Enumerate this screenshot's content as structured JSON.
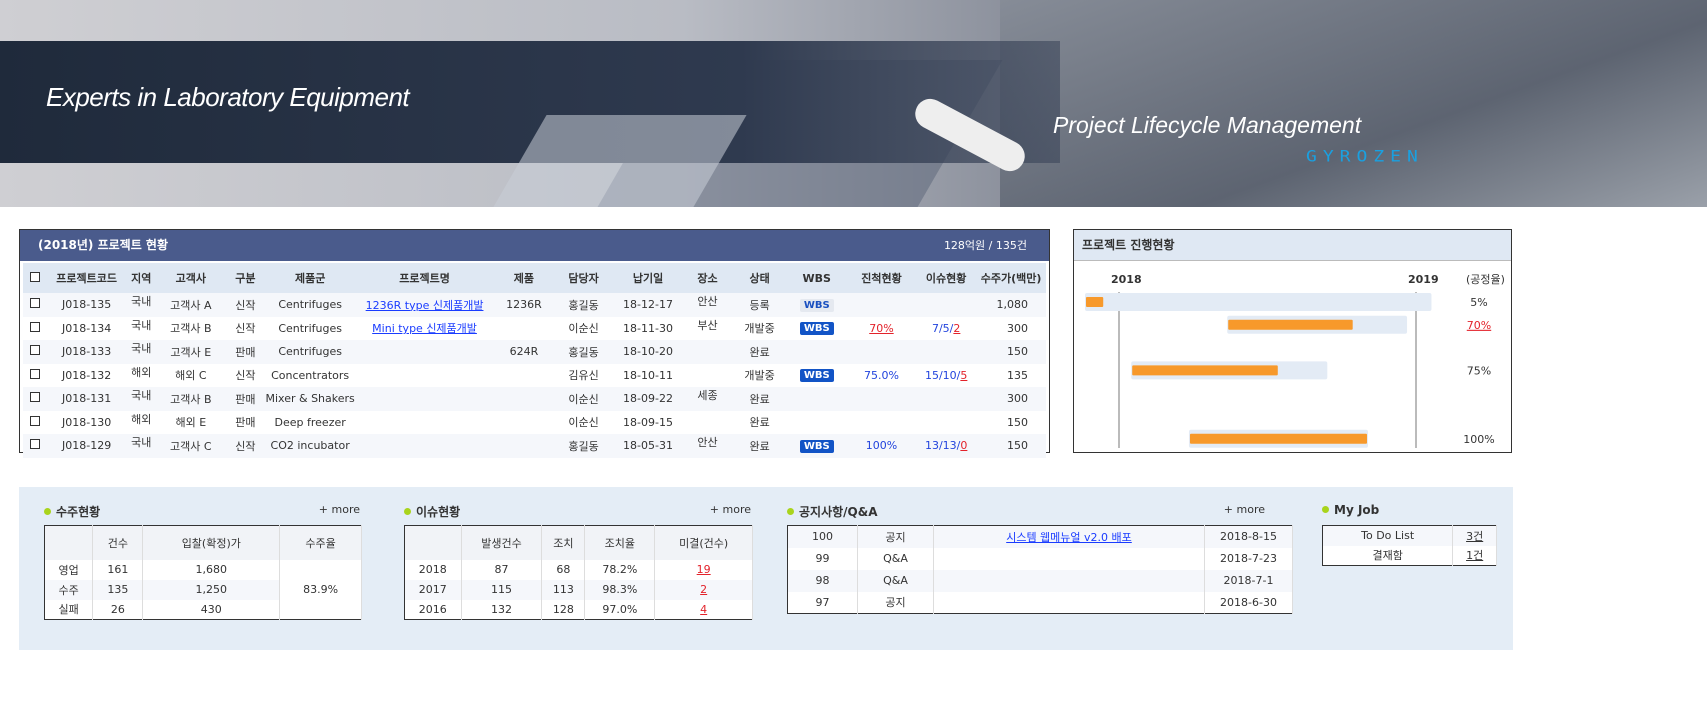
{
  "banner": {
    "tagline": "Experts in Laboratory Equipment",
    "product": "Project Lifecycle Management",
    "logo": "GYROZEN"
  },
  "projects": {
    "title": "(2018년) 프로젝트 현황",
    "summary": "128억원 / 135건",
    "headers": [
      "프로젝트코드",
      "지역",
      "고객사",
      "구분",
      "제품군",
      "프로젝트명",
      "제품",
      "담당자",
      "납기일",
      "장소",
      "상태",
      "WBS",
      "진척현황",
      "이슈현황",
      "수주가(백만)"
    ],
    "rows": [
      {
        "code": "J018-135",
        "region": "국내",
        "client": "고객사 A",
        "type": "신작",
        "group": "Centrifuges",
        "name": "1236R type 신제품개발",
        "product": "1236R",
        "owner": "홍길동",
        "due": "18-12-17",
        "place": "안산",
        "status": "등록",
        "wbs": "WBS",
        "wbs_style": "light",
        "progress": "",
        "issue_a": "",
        "issue_b": "",
        "amount": "1,080"
      },
      {
        "code": "J018-134",
        "region": "국내",
        "client": "고객사 B",
        "type": "신작",
        "group": "Centrifuges",
        "name": "Mini type 신제품개발",
        "product": "",
        "owner": "이순신",
        "due": "18-11-30",
        "place": "부산",
        "status": "개발중",
        "wbs": "WBS",
        "wbs_style": "dark",
        "progress": "70%",
        "progress_style": "red",
        "issue_a": "7/5/",
        "issue_b": "2",
        "amount": "300"
      },
      {
        "code": "J018-133",
        "region": "국내",
        "client": "고객사 E",
        "type": "판매",
        "group": "Centrifuges",
        "name": "",
        "product": "624R",
        "owner": "홍길동",
        "due": "18-10-20",
        "place": "",
        "status": "완료",
        "wbs": "",
        "progress": "",
        "issue_a": "",
        "issue_b": "",
        "amount": "150"
      },
      {
        "code": "J018-132",
        "region": "해외",
        "client": "해외 C",
        "type": "신작",
        "group": "Concentrators",
        "name": "",
        "product": "",
        "owner": "김유신",
        "due": "18-10-11",
        "place": "",
        "status": "개발중",
        "wbs": "WBS",
        "wbs_style": "dark",
        "progress": "75.0%",
        "progress_style": "blue",
        "issue_a": "15/10/",
        "issue_b": "5",
        "amount": "135"
      },
      {
        "code": "J018-131",
        "region": "국내",
        "client": "고객사 B",
        "type": "판매",
        "group": "Mixer & Shakers",
        "name": "",
        "product": "",
        "owner": "이순신",
        "due": "18-09-22",
        "place": "세종",
        "status": "완료",
        "wbs": "",
        "progress": "",
        "issue_a": "",
        "issue_b": "",
        "amount": "300"
      },
      {
        "code": "J018-130",
        "region": "해외",
        "client": "해외 E",
        "type": "판매",
        "group": "Deep freezer",
        "name": "",
        "product": "",
        "owner": "이순신",
        "due": "18-09-15",
        "place": "",
        "status": "완료",
        "wbs": "",
        "progress": "",
        "issue_a": "",
        "issue_b": "",
        "amount": "150"
      },
      {
        "code": "J018-129",
        "region": "국내",
        "client": "고객사 C",
        "type": "신작",
        "group": "CO2 incubator",
        "name": "",
        "product": "",
        "owner": "홍길동",
        "due": "18-05-31",
        "place": "안산",
        "status": "완료",
        "wbs": "WBS",
        "wbs_style": "dark",
        "progress": "100%",
        "progress_style": "blue",
        "issue_a": "13/13/",
        "issue_b": "0",
        "amount": "150"
      }
    ]
  },
  "gantt": {
    "title": "프로젝트 진행현황",
    "year_start": "2018",
    "year_end": "2019",
    "rate_label": "(공정율)",
    "colors": {
      "track": "#e3ebf5",
      "fill": "#f7992b"
    },
    "rows": [
      {
        "start": "2017-11-20",
        "end": "2019-01-20",
        "progress": 5,
        "label": "5%",
        "style": "normal"
      },
      {
        "start": "2018-05-14",
        "end": "2018-12-21",
        "progress": 70,
        "label": "70%",
        "style": "red"
      },
      null,
      {
        "start": "2018-01-16",
        "end": "2018-09-14",
        "progress": 75,
        "label": "75%",
        "style": "normal"
      },
      null,
      null,
      {
        "start": "2018-03-28",
        "end": "2018-11-03",
        "progress": 100,
        "label": "100%",
        "style": "normal"
      }
    ]
  },
  "orders": {
    "title": "수주현황",
    "more": "+ more",
    "headers": [
      "",
      "건수",
      "입찰(확정)가",
      "수주율"
    ],
    "rows": [
      [
        "영업",
        "161",
        "1,680"
      ],
      [
        "수주",
        "135",
        "1,250"
      ],
      [
        "실패",
        "26",
        "430"
      ]
    ],
    "rate": "83.9%"
  },
  "issues": {
    "title": "이슈현황",
    "more": "+ more",
    "headers": [
      "",
      "발생건수",
      "조치",
      "조치율",
      "미결(건수)"
    ],
    "rows": [
      [
        "2018",
        "87",
        "68",
        "78.2%",
        "19"
      ],
      [
        "2017",
        "115",
        "113",
        "98.3%",
        "2"
      ],
      [
        "2016",
        "132",
        "128",
        "97.0%",
        "4"
      ]
    ]
  },
  "notices": {
    "title": "공지사항/Q&A",
    "more": "+ more",
    "rows": [
      [
        "100",
        "공지",
        "시스템 웹메뉴얼 v2.0 배포",
        "2018-8-15"
      ],
      [
        "99",
        "Q&A",
        "",
        "2018-7-23"
      ],
      [
        "98",
        "Q&A",
        "",
        "2018-7-1"
      ],
      [
        "97",
        "공지",
        "",
        "2018-6-30"
      ]
    ]
  },
  "myjob": {
    "title": "My Job",
    "rows": [
      [
        "To Do List",
        "3건"
      ],
      [
        "결재함",
        "1건"
      ]
    ]
  }
}
